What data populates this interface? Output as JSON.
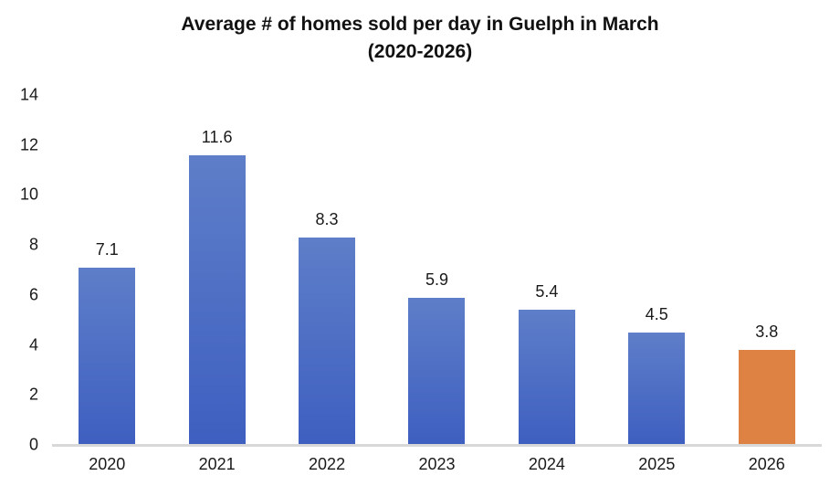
{
  "title": {
    "line1": "Average # of homes sold per day in Guelph in March",
    "line2": "(2020-2026)"
  },
  "colors": {
    "bar_gradient_top": "#5e7ec9",
    "bar_gradient_bottom": "#3e5fc0",
    "highlight_bar": "#de8244",
    "axis_line": "#d8d8d8",
    "text": "#1a1a1a"
  },
  "chart_data": {
    "type": "bar",
    "title": "Average # of homes sold per day in Guelph in March (2020-2026)",
    "categories": [
      "2020",
      "2021",
      "2022",
      "2023",
      "2024",
      "2025",
      "2026"
    ],
    "values": [
      7.1,
      11.6,
      8.3,
      5.9,
      5.4,
      4.5,
      3.8
    ],
    "value_labels": [
      "7.1",
      "11.6",
      "8.3",
      "5.9",
      "5.4",
      "4.5",
      "3.8"
    ],
    "highlight_index": 6,
    "xlabel": "",
    "ylabel": "",
    "ylim": [
      0,
      14
    ],
    "yticks": [
      0,
      2,
      4,
      6,
      8,
      10,
      12,
      14
    ],
    "grid": false,
    "legend": false,
    "data_labels_position": "above-bar"
  }
}
